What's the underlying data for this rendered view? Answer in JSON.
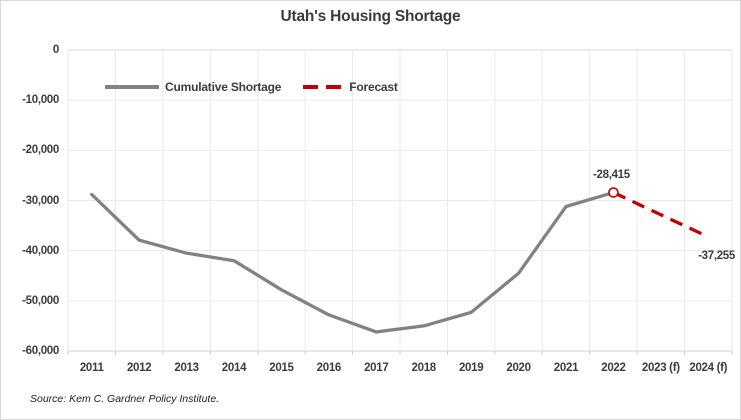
{
  "chart_data": {
    "type": "line",
    "title": "Utah's Housing Shortage",
    "xlabel": "",
    "ylabel": "",
    "categories": [
      "2011",
      "2012",
      "2013",
      "2014",
      "2015",
      "2016",
      "2017",
      "2018",
      "2019",
      "2020",
      "2021",
      "2022",
      "2023 (f)",
      "2024 (f)"
    ],
    "series": [
      {
        "name": "Cumulative Shortage",
        "color": "#828282",
        "style": "solid",
        "values": [
          -28800,
          -37900,
          -40500,
          -42000,
          -47800,
          -52800,
          -56200,
          -55000,
          -52300,
          -44500,
          -31200,
          -28415,
          null,
          null
        ]
      },
      {
        "name": "Forecast",
        "color": "#c00000",
        "style": "dashed",
        "values": [
          null,
          null,
          null,
          null,
          null,
          null,
          null,
          null,
          null,
          null,
          null,
          -28415,
          -32835,
          -37255
        ]
      }
    ],
    "ylim": [
      -60000,
      0
    ],
    "y_ticks": [
      "0",
      "-10,000",
      "-20,000",
      "-30,000",
      "-40,000",
      "-50,000",
      "-60,000"
    ],
    "y_tick_values": [
      0,
      -10000,
      -20000,
      -30000,
      -40000,
      -50000,
      -60000
    ],
    "grid": true,
    "legend_position": "inside-top-left",
    "marker": {
      "category": "2022",
      "value": -28415,
      "shape": "open-circle",
      "color": "#c00000"
    },
    "annotations": [
      {
        "text": "-28,415",
        "category": "2022",
        "value": -28415,
        "placement": "above"
      },
      {
        "text": "-37,255",
        "category": "2024 (f)",
        "value": -37255,
        "placement": "below-right"
      }
    ],
    "grid_color": "#e9e9e9",
    "axis_line_color": "#cfcfcf",
    "zero_line_color": "#d4d4d4"
  },
  "legend": {
    "items": [
      {
        "label": "Cumulative Shortage"
      },
      {
        "label": "Forecast"
      }
    ]
  },
  "source": {
    "text": "Source: Kem C. Gardner Policy Institute."
  }
}
